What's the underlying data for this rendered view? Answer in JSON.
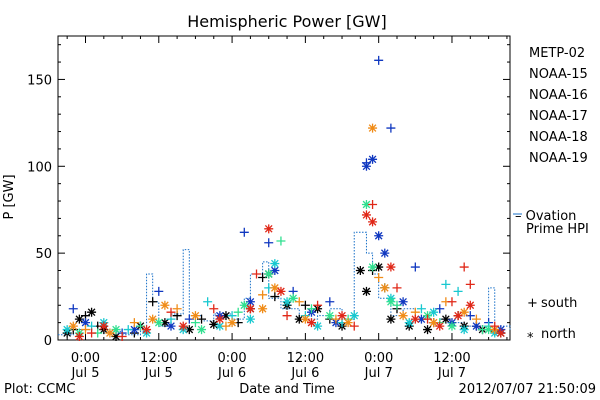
{
  "chart_data": {
    "type": "scatter",
    "title": "Hemispheric Power [GW]",
    "xlabel": "Date and Time",
    "ylabel": "P [GW]",
    "ylim": [
      0,
      175
    ],
    "xlim_hours": [
      -4.5,
      69.5
    ],
    "y_ticks": [
      0,
      50,
      100,
      150
    ],
    "x_ticks": [
      {
        "hour": 0,
        "time": "0:00",
        "date": "Jul 5"
      },
      {
        "hour": 12,
        "time": "12:00",
        "date": "Jul 5"
      },
      {
        "hour": 24,
        "time": "0:00",
        "date": "Jul 6"
      },
      {
        "hour": 36,
        "time": "12:00",
        "date": "Jul 6"
      },
      {
        "hour": 48,
        "time": "0:00",
        "date": "Jul 7"
      },
      {
        "hour": 60,
        "time": "12:00",
        "date": "Jul 7"
      }
    ],
    "grid": false,
    "legend_position": "right",
    "footer_left": "Plot: CCMC",
    "footer_right": "2012/07/07 21:50:09",
    "symbol_legend": [
      {
        "symbol": "+",
        "label": "south"
      },
      {
        "symbol": "*",
        "label": "north"
      }
    ],
    "series": [
      {
        "name": "METP-02",
        "color": "#000000",
        "south": [
          [
            -2,
            6
          ],
          [
            0,
            14
          ],
          [
            2,
            8
          ],
          [
            8,
            4
          ],
          [
            11,
            22
          ],
          [
            15,
            14
          ],
          [
            19,
            12
          ],
          [
            25,
            10
          ],
          [
            29,
            36
          ],
          [
            31,
            25
          ],
          [
            36,
            20
          ],
          [
            40,
            12
          ],
          [
            47,
            40
          ],
          [
            49,
            30
          ],
          [
            51,
            18
          ],
          [
            57,
            10
          ],
          [
            61,
            14
          ],
          [
            64,
            8
          ],
          [
            67,
            5
          ]
        ],
        "north": [
          [
            -3,
            4
          ],
          [
            -1,
            12
          ],
          [
            1,
            16
          ],
          [
            3,
            6
          ],
          [
            5,
            2
          ],
          [
            9,
            8
          ],
          [
            13,
            10
          ],
          [
            17,
            6
          ],
          [
            21,
            9
          ],
          [
            23,
            14
          ],
          [
            27,
            18
          ],
          [
            30,
            38
          ],
          [
            33,
            20
          ],
          [
            35,
            12
          ],
          [
            38,
            18
          ],
          [
            42,
            8
          ],
          [
            45,
            40
          ],
          [
            46,
            28
          ],
          [
            48,
            42
          ],
          [
            50,
            12
          ],
          [
            53,
            8
          ],
          [
            56,
            6
          ],
          [
            59,
            12
          ],
          [
            62,
            8
          ],
          [
            65,
            6
          ],
          [
            68,
            4
          ]
        ]
      },
      {
        "name": "NOAA-15",
        "color": "#1038c0",
        "south": [
          [
            -2,
            18
          ],
          [
            6,
            4
          ],
          [
            12,
            28
          ],
          [
            17,
            12
          ],
          [
            26,
            62
          ],
          [
            30,
            56
          ],
          [
            34,
            28
          ],
          [
            40,
            22
          ],
          [
            46,
            102
          ],
          [
            48,
            161
          ],
          [
            50,
            122
          ],
          [
            54,
            42
          ],
          [
            58,
            18
          ],
          [
            63,
            14
          ],
          [
            66,
            10
          ]
        ],
        "north": [
          [
            0,
            10
          ],
          [
            8,
            6
          ],
          [
            14,
            8
          ],
          [
            22,
            14
          ],
          [
            27,
            22
          ],
          [
            31,
            40
          ],
          [
            37,
            16
          ],
          [
            41,
            10
          ],
          [
            46,
            100
          ],
          [
            47,
            104
          ],
          [
            48,
            60
          ],
          [
            49,
            50
          ],
          [
            52,
            22
          ],
          [
            55,
            12
          ],
          [
            60,
            10
          ],
          [
            64,
            8
          ],
          [
            68,
            6
          ]
        ]
      },
      {
        "name": "NOAA-16",
        "color": "#18c8d0",
        "south": [
          [
            1,
            8
          ],
          [
            7,
            6
          ],
          [
            14,
            12
          ],
          [
            20,
            22
          ],
          [
            24,
            14
          ],
          [
            30,
            30
          ],
          [
            36,
            14
          ],
          [
            42,
            10
          ],
          [
            49,
            30
          ],
          [
            55,
            18
          ],
          [
            59,
            32
          ],
          [
            61,
            28
          ],
          [
            66,
            8
          ]
        ],
        "north": [
          [
            -3,
            6
          ],
          [
            3,
            10
          ],
          [
            10,
            4
          ],
          [
            16,
            6
          ],
          [
            22,
            8
          ],
          [
            27,
            12
          ],
          [
            31,
            44
          ],
          [
            33,
            22
          ],
          [
            38,
            8
          ],
          [
            44,
            14
          ],
          [
            50,
            24
          ],
          [
            53,
            10
          ],
          [
            57,
            16
          ],
          [
            62,
            6
          ],
          [
            67,
            4
          ]
        ]
      },
      {
        "name": "NOAA-17",
        "color": "#30e090",
        "south": [
          [
            2,
            4
          ],
          [
            9,
            8
          ],
          [
            18,
            10
          ],
          [
            25,
            16
          ],
          [
            32,
            57
          ],
          [
            37,
            18
          ],
          [
            43,
            12
          ],
          [
            51,
            20
          ],
          [
            58,
            10
          ],
          [
            65,
            6
          ]
        ],
        "north": [
          [
            -1,
            4
          ],
          [
            5,
            6
          ],
          [
            12,
            10
          ],
          [
            19,
            6
          ],
          [
            26,
            20
          ],
          [
            30,
            38
          ],
          [
            34,
            24
          ],
          [
            40,
            14
          ],
          [
            46,
            78
          ],
          [
            47,
            42
          ],
          [
            50,
            22
          ],
          [
            56,
            14
          ],
          [
            60,
            8
          ],
          [
            66,
            6
          ]
        ]
      },
      {
        "name": "NOAA-18",
        "color": "#f08c18",
        "south": [
          [
            0,
            6
          ],
          [
            8,
            10
          ],
          [
            15,
            18
          ],
          [
            23,
            8
          ],
          [
            29,
            26
          ],
          [
            35,
            22
          ],
          [
            41,
            12
          ],
          [
            48,
            36
          ],
          [
            54,
            16
          ],
          [
            59,
            22
          ],
          [
            64,
            12
          ]
        ],
        "north": [
          [
            -2,
            8
          ],
          [
            4,
            4
          ],
          [
            11,
            12
          ],
          [
            13,
            20
          ],
          [
            18,
            14
          ],
          [
            24,
            10
          ],
          [
            29,
            18
          ],
          [
            31,
            30
          ],
          [
            36,
            12
          ],
          [
            43,
            10
          ],
          [
            47,
            122
          ],
          [
            49,
            30
          ],
          [
            52,
            14
          ],
          [
            57,
            10
          ],
          [
            62,
            16
          ],
          [
            67,
            6
          ]
        ]
      },
      {
        "name": "NOAA-19",
        "color": "#e02818",
        "south": [
          [
            1,
            4
          ],
          [
            6,
            2
          ],
          [
            14,
            16
          ],
          [
            21,
            18
          ],
          [
            28,
            38
          ],
          [
            33,
            14
          ],
          [
            38,
            20
          ],
          [
            44,
            8
          ],
          [
            47,
            78
          ],
          [
            51,
            30
          ],
          [
            56,
            12
          ],
          [
            60,
            22
          ],
          [
            62,
            42
          ],
          [
            63,
            32
          ],
          [
            67,
            8
          ]
        ],
        "north": [
          [
            -1,
            2
          ],
          [
            3,
            8
          ],
          [
            10,
            6
          ],
          [
            16,
            8
          ],
          [
            22,
            12
          ],
          [
            27,
            18
          ],
          [
            30,
            64
          ],
          [
            32,
            28
          ],
          [
            37,
            10
          ],
          [
            42,
            14
          ],
          [
            46,
            72
          ],
          [
            47,
            68
          ],
          [
            50,
            42
          ],
          [
            54,
            12
          ],
          [
            58,
            8
          ],
          [
            61,
            14
          ],
          [
            63,
            20
          ],
          [
            68,
            4
          ]
        ]
      }
    ],
    "hpi_steps": [
      [
        -4.5,
        3
      ],
      [
        -2,
        6
      ],
      [
        1,
        4
      ],
      [
        4,
        5
      ],
      [
        6,
        3
      ],
      [
        9,
        5
      ],
      [
        10,
        38
      ],
      [
        11,
        22
      ],
      [
        12,
        8
      ],
      [
        14,
        15
      ],
      [
        16,
        52
      ],
      [
        17,
        14
      ],
      [
        19,
        11
      ],
      [
        21,
        15
      ],
      [
        24,
        12
      ],
      [
        26,
        24
      ],
      [
        27,
        38
      ],
      [
        29,
        45
      ],
      [
        30,
        24
      ],
      [
        32,
        18
      ],
      [
        35,
        12
      ],
      [
        38,
        14
      ],
      [
        40,
        18
      ],
      [
        42,
        12
      ],
      [
        44,
        62
      ],
      [
        46,
        50
      ],
      [
        47,
        38
      ],
      [
        48,
        24
      ],
      [
        50,
        14
      ],
      [
        52,
        18
      ],
      [
        54,
        12
      ],
      [
        56,
        10
      ],
      [
        58,
        12
      ],
      [
        60,
        10
      ],
      [
        62,
        8
      ],
      [
        64,
        6
      ],
      [
        66,
        30
      ],
      [
        67,
        8
      ],
      [
        69.5,
        6
      ]
    ],
    "ovation_label_1": "– Ovation",
    "ovation_label_2": "Prime HPI",
    "ovation_color": "#1870c8"
  }
}
